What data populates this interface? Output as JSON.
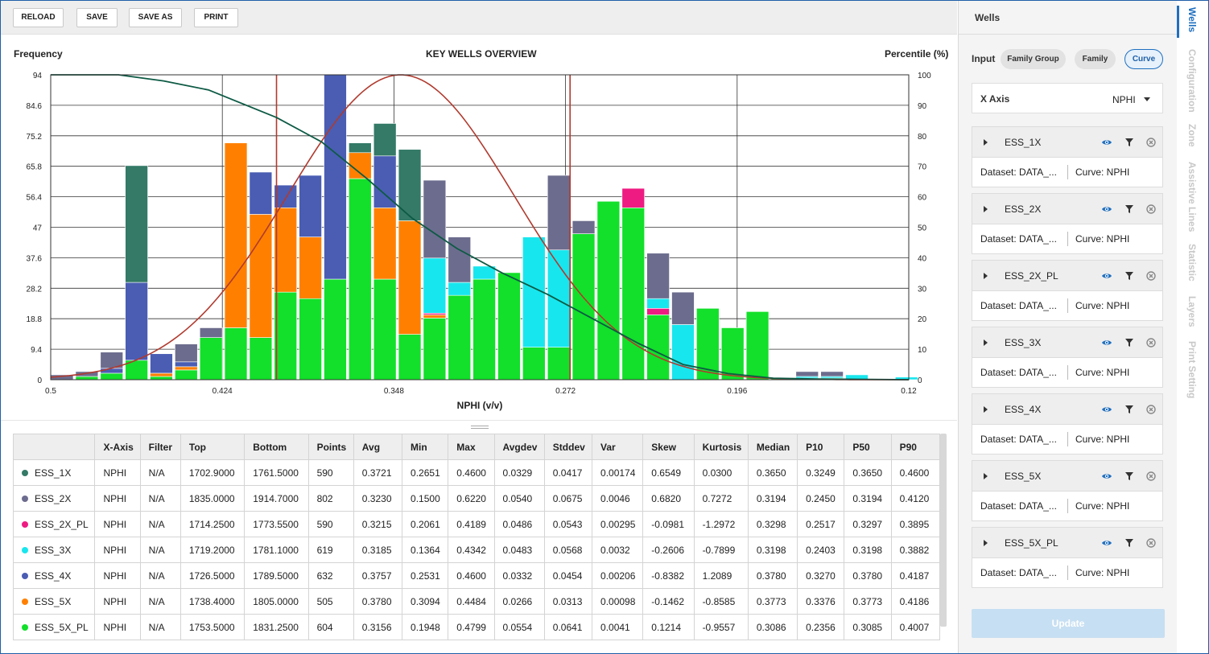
{
  "toolbar": {
    "reload": "RELOAD",
    "save": "SAVE",
    "save_as": "SAVE AS",
    "print": "PRINT"
  },
  "chart": {
    "left_title": "Frequency",
    "center_title": "KEY WELLS OVERVIEW",
    "right_title": "Percentile (%)"
  },
  "chart_data": {
    "type": "bar",
    "title": "KEY WELLS OVERVIEW",
    "xlabel": "NPHI (v/v)",
    "ylabel": "Frequency",
    "y2label": "Percentile (%)",
    "x_reversed": true,
    "xlim": [
      0.5,
      0.12
    ],
    "ylim": [
      0,
      94
    ],
    "y2lim": [
      0,
      100
    ],
    "x_ticks": [
      "0.5",
      "0.424",
      "0.348",
      "0.272",
      "0.196",
      "0.12"
    ],
    "y_ticks": [
      "0",
      "9.4",
      "18.8",
      "28.2",
      "37.6",
      "47",
      "56.4",
      "65.8",
      "75.2",
      "84.6",
      "94"
    ],
    "y2_ticks": [
      "0",
      "10",
      "20",
      "30",
      "40",
      "50",
      "60",
      "70",
      "80",
      "90",
      "100"
    ],
    "grid": true,
    "stacked": true,
    "series_order": [
      "ESS_5X_PL",
      "ESS_5X",
      "ESS_2X_PL",
      "ESS_3X",
      "ESS_4X",
      "ESS_1X",
      "ESS_2X"
    ],
    "series_colors": {
      "ESS_5X_PL": "#12e02a",
      "ESS_5X": "#ff8000",
      "ESS_2X_PL": "#ee1b82",
      "ESS_3X": "#18e6ee",
      "ESS_4X": "#4a5db3",
      "ESS_1X": "#347a66",
      "ESS_2X": "#6c6c8e"
    },
    "bins": [
      {
        "x": 0.495,
        "s": {
          "ESS_2X": 1.5
        }
      },
      {
        "x": 0.484,
        "s": {
          "ESS_5X_PL": 1,
          "ESS_2X": 1.5
        }
      },
      {
        "x": 0.473,
        "s": {
          "ESS_5X_PL": 2,
          "ESS_4X": 1.5,
          "ESS_2X": 5
        }
      },
      {
        "x": 0.462,
        "s": {
          "ESS_5X_PL": 6,
          "ESS_4X": 24,
          "ESS_1X": 36
        }
      },
      {
        "x": 0.451,
        "s": {
          "ESS_5X_PL": 1,
          "ESS_5X": 1,
          "ESS_4X": 6
        }
      },
      {
        "x": 0.44,
        "s": {
          "ESS_5X_PL": 3,
          "ESS_5X": 1,
          "ESS_4X": 1.5,
          "ESS_2X": 5.5
        }
      },
      {
        "x": 0.429,
        "s": {
          "ESS_5X_PL": 13,
          "ESS_2X": 3
        }
      },
      {
        "x": 0.418,
        "s": {
          "ESS_5X_PL": 16,
          "ESS_5X": 57
        }
      },
      {
        "x": 0.407,
        "s": {
          "ESS_5X_PL": 13,
          "ESS_5X": 38,
          "ESS_4X": 13
        }
      },
      {
        "x": 0.396,
        "s": {
          "ESS_5X_PL": 27,
          "ESS_5X": 26,
          "ESS_4X": 7
        }
      },
      {
        "x": 0.385,
        "s": {
          "ESS_5X_PL": 25,
          "ESS_5X": 19,
          "ESS_4X": 19
        }
      },
      {
        "x": 0.374,
        "s": {
          "ESS_5X_PL": 31,
          "ESS_4X": 63
        }
      },
      {
        "x": 0.363,
        "s": {
          "ESS_5X_PL": 62,
          "ESS_5X": 8,
          "ESS_1X": 3
        }
      },
      {
        "x": 0.352,
        "s": {
          "ESS_5X_PL": 31,
          "ESS_5X": 22,
          "ESS_4X": 16,
          "ESS_1X": 10
        }
      },
      {
        "x": 0.341,
        "s": {
          "ESS_5X_PL": 14,
          "ESS_5X": 35,
          "ESS_1X": 22
        }
      },
      {
        "x": 0.33,
        "s": {
          "ESS_5X_PL": 19,
          "ESS_5X": 1,
          "ESS_2X_PL": 0.5,
          "ESS_3X": 17,
          "ESS_2X": 24
        }
      },
      {
        "x": 0.319,
        "s": {
          "ESS_5X_PL": 26,
          "ESS_3X": 4,
          "ESS_2X": 14
        }
      },
      {
        "x": 0.308,
        "s": {
          "ESS_5X_PL": 31,
          "ESS_3X": 4
        }
      },
      {
        "x": 0.297,
        "s": {
          "ESS_5X_PL": 33
        }
      },
      {
        "x": 0.286,
        "s": {
          "ESS_5X_PL": 10,
          "ESS_3X": 34
        }
      },
      {
        "x": 0.275,
        "s": {
          "ESS_5X_PL": 10,
          "ESS_3X": 30,
          "ESS_2X": 23
        }
      },
      {
        "x": 0.264,
        "s": {
          "ESS_5X_PL": 45,
          "ESS_2X": 4
        }
      },
      {
        "x": 0.253,
        "s": {
          "ESS_5X_PL": 55
        }
      },
      {
        "x": 0.242,
        "s": {
          "ESS_5X_PL": 53,
          "ESS_2X_PL": 6
        }
      },
      {
        "x": 0.231,
        "s": {
          "ESS_5X_PL": 20,
          "ESS_2X_PL": 2,
          "ESS_3X": 3,
          "ESS_2X": 14
        }
      },
      {
        "x": 0.22,
        "s": {
          "ESS_3X": 17,
          "ESS_2X": 10
        }
      },
      {
        "x": 0.209,
        "s": {
          "ESS_5X_PL": 22
        }
      },
      {
        "x": 0.198,
        "s": {
          "ESS_5X_PL": 16
        }
      },
      {
        "x": 0.187,
        "s": {
          "ESS_5X_PL": 21
        }
      },
      {
        "x": 0.176,
        "s": {
          "ESS_5X_PL": 0.5
        }
      },
      {
        "x": 0.165,
        "s": {
          "ESS_5X_PL": 0.5,
          "ESS_3X": 0.5,
          "ESS_2X": 1.5
        }
      },
      {
        "x": 0.154,
        "s": {
          "ESS_5X_PL": 0.5,
          "ESS_3X": 0.5,
          "ESS_2X": 1.5
        }
      },
      {
        "x": 0.143,
        "s": {
          "ESS_3X": 1.5
        }
      },
      {
        "x": 0.121,
        "s": {
          "ESS_3X": 0.8
        }
      }
    ],
    "normal_curve": {
      "color": "#b03a2e",
      "peak_x": 0.345,
      "sigma": 0.05
    },
    "cumulative_curve": {
      "color": "#0d5a44",
      "points": [
        [
          0.5,
          100
        ],
        [
          0.47,
          100
        ],
        [
          0.45,
          98
        ],
        [
          0.43,
          95
        ],
        [
          0.42,
          92
        ],
        [
          0.4,
          86
        ],
        [
          0.38,
          78
        ],
        [
          0.36,
          66
        ],
        [
          0.34,
          53
        ],
        [
          0.32,
          43
        ],
        [
          0.3,
          35
        ],
        [
          0.28,
          28
        ],
        [
          0.26,
          20
        ],
        [
          0.24,
          12
        ],
        [
          0.22,
          5
        ],
        [
          0.2,
          2
        ],
        [
          0.18,
          0.5
        ],
        [
          0.16,
          0.2
        ],
        [
          0.12,
          0
        ]
      ]
    },
    "marker_lines_x": [
      0.4,
      0.27
    ]
  },
  "table": {
    "headers": [
      "",
      "X-Axis",
      "Filter",
      "Top",
      "Bottom",
      "Points",
      "Avg",
      "Min",
      "Max",
      "Avgdev",
      "Stddev",
      "Var",
      "Skew",
      "Kurtosis",
      "Median",
      "P10",
      "P50",
      "P90"
    ],
    "rows": [
      {
        "color": "#347a66",
        "cells": [
          "ESS_1X",
          "NPHI",
          "N/A",
          "1702.9000",
          "1761.5000",
          "590",
          "0.3721",
          "0.2651",
          "0.4600",
          "0.0329",
          "0.0417",
          "0.00174",
          "0.6549",
          "0.0300",
          "0.3650",
          "0.3249",
          "0.3650",
          "0.4600"
        ]
      },
      {
        "color": "#6c6c8e",
        "cells": [
          "ESS_2X",
          "NPHI",
          "N/A",
          "1835.0000",
          "1914.7000",
          "802",
          "0.3230",
          "0.1500",
          "0.6220",
          "0.0540",
          "0.0675",
          "0.0046",
          "0.6820",
          "0.7272",
          "0.3194",
          "0.2450",
          "0.3194",
          "0.4120"
        ]
      },
      {
        "color": "#ee1b82",
        "cells": [
          "ESS_2X_PL",
          "NPHI",
          "N/A",
          "1714.2500",
          "1773.5500",
          "590",
          "0.3215",
          "0.2061",
          "0.4189",
          "0.0486",
          "0.0543",
          "0.00295",
          "-0.0981",
          "-1.2972",
          "0.3298",
          "0.2517",
          "0.3297",
          "0.3895"
        ]
      },
      {
        "color": "#18e6ee",
        "cells": [
          "ESS_3X",
          "NPHI",
          "N/A",
          "1719.2000",
          "1781.1000",
          "619",
          "0.3185",
          "0.1364",
          "0.4342",
          "0.0483",
          "0.0568",
          "0.0032",
          "-0.2606",
          "-0.7899",
          "0.3198",
          "0.2403",
          "0.3198",
          "0.3882"
        ]
      },
      {
        "color": "#4a5db3",
        "cells": [
          "ESS_4X",
          "NPHI",
          "N/A",
          "1726.5000",
          "1789.5000",
          "632",
          "0.3757",
          "0.2531",
          "0.4600",
          "0.0332",
          "0.0454",
          "0.00206",
          "-0.8382",
          "1.2089",
          "0.3780",
          "0.3270",
          "0.3780",
          "0.4187"
        ]
      },
      {
        "color": "#ff8000",
        "cells": [
          "ESS_5X",
          "NPHI",
          "N/A",
          "1738.4000",
          "1805.0000",
          "505",
          "0.3780",
          "0.3094",
          "0.4484",
          "0.0266",
          "0.0313",
          "0.00098",
          "-0.1462",
          "-0.8585",
          "0.3773",
          "0.3376",
          "0.3773",
          "0.4186"
        ]
      },
      {
        "color": "#12e02a",
        "cells": [
          "ESS_5X_PL",
          "NPHI",
          "N/A",
          "1753.5000",
          "1831.2500",
          "604",
          "0.3156",
          "0.1948",
          "0.4799",
          "0.0554",
          "0.0641",
          "0.0041",
          "0.1214",
          "-0.9557",
          "0.3086",
          "0.2356",
          "0.3085",
          "0.4007"
        ]
      }
    ]
  },
  "panel": {
    "title": "Wells",
    "input_label": "Input",
    "pills": [
      "Family Group",
      "Family",
      "Curve"
    ],
    "active_pill": "Curve",
    "xaxis_label": "X Axis",
    "xaxis_value": "NPHI",
    "wells": [
      {
        "name": "ESS_1X",
        "dataset": "Dataset: DATA_...",
        "curve": "Curve: NPHI"
      },
      {
        "name": "ESS_2X",
        "dataset": "Dataset: DATA_...",
        "curve": "Curve: NPHI"
      },
      {
        "name": "ESS_2X_PL",
        "dataset": "Dataset: DATA_...",
        "curve": "Curve: NPHI"
      },
      {
        "name": "ESS_3X",
        "dataset": "Dataset: DATA_...",
        "curve": "Curve: NPHI"
      },
      {
        "name": "ESS_4X",
        "dataset": "Dataset: DATA_...",
        "curve": "Curve: NPHI"
      },
      {
        "name": "ESS_5X",
        "dataset": "Dataset: DATA_...",
        "curve": "Curve: NPHI"
      },
      {
        "name": "ESS_5X_PL",
        "dataset": "Dataset: DATA_...",
        "curve": "Curve: NPHI"
      }
    ],
    "update_label": "Update"
  },
  "vtabs": [
    "Wells",
    "Configuration",
    "Zone",
    "Assistive Lines",
    "Statistic",
    "Layers",
    "Print Setting"
  ],
  "icons": {
    "visibility": "eye-icon",
    "filter": "filter-icon",
    "remove": "close-circle-icon",
    "expand": "caret-right-icon",
    "dropdown": "caret-down-icon"
  },
  "accent_color": "#1f6fbf"
}
